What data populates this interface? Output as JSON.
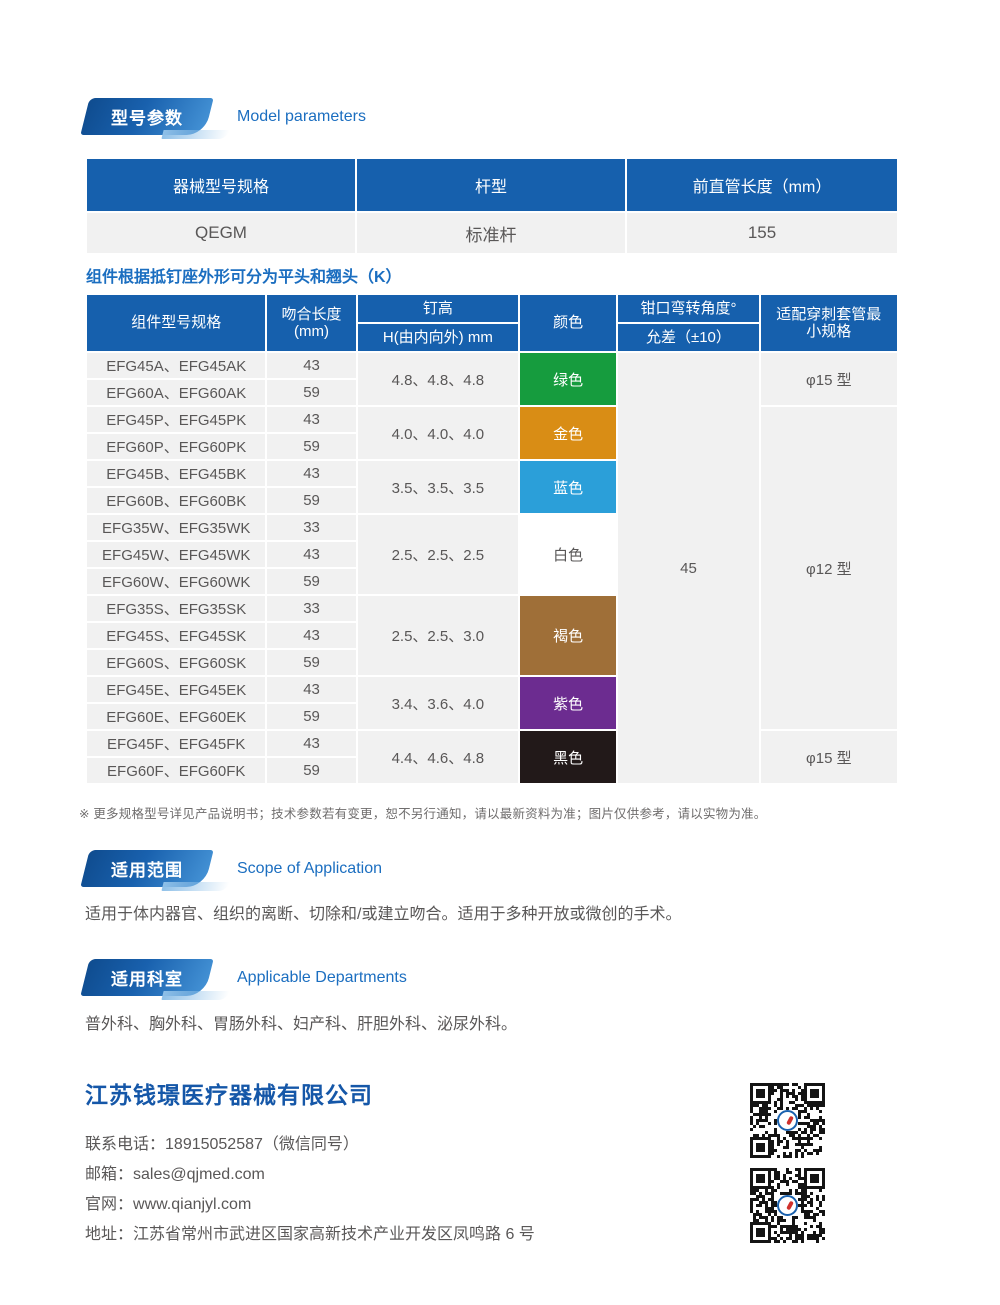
{
  "model_params": {
    "badge": "型号参数",
    "subtitle": "Model parameters",
    "table": {
      "headers": [
        "器械型号规格",
        "杆型",
        "前直管长度（mm）"
      ],
      "row": [
        "QEGM",
        "标准杆",
        "155"
      ]
    }
  },
  "components_note": "组件根据抵钉座外形可分为平头和翘头（K）",
  "components_table": {
    "headers": {
      "model": "组件型号规格",
      "length_line1": "吻合长度",
      "length_line2": "(mm)",
      "staple": "钉高",
      "staple_sub": "H(由内向外) mm",
      "color": "颜色",
      "angle": "钳口弯转角度°",
      "angle_sub": "允差（±10）",
      "trocar": "适配穿刺套管最小规格"
    },
    "angle_value": "45",
    "groups": [
      {
        "staple_heights": "4.8、4.8、4.8",
        "color": {
          "label": "绿色",
          "hex": "#169c3e",
          "text": "#ffffff"
        },
        "models": [
          {
            "name": "EFG45A、EFG45AK",
            "length": "43"
          },
          {
            "name": "EFG60A、EFG60AK",
            "length": "59"
          }
        ]
      },
      {
        "staple_heights": "4.0、4.0、4.0",
        "color": {
          "label": "金色",
          "hex": "#d98d15",
          "text": "#ffffff"
        },
        "models": [
          {
            "name": "EFG45P、EFG45PK",
            "length": "43"
          },
          {
            "name": "EFG60P、EFG60PK",
            "length": "59"
          }
        ]
      },
      {
        "staple_heights": "3.5、3.5、3.5",
        "color": {
          "label": "蓝色",
          "hex": "#2b9fd9",
          "text": "#ffffff"
        },
        "models": [
          {
            "name": "EFG45B、EFG45BK",
            "length": "43"
          },
          {
            "name": "EFG60B、EFG60BK",
            "length": "59"
          }
        ]
      },
      {
        "staple_heights": "2.5、2.5、2.5",
        "color": {
          "label": "白色",
          "hex": "#ffffff",
          "text": "#595757"
        },
        "models": [
          {
            "name": "EFG35W、EFG35WK",
            "length": "33"
          },
          {
            "name": "EFG45W、EFG45WK",
            "length": "43"
          },
          {
            "name": "EFG60W、EFG60WK",
            "length": "59"
          }
        ]
      },
      {
        "staple_heights": "2.5、2.5、3.0",
        "color": {
          "label": "褐色",
          "hex": "#9f6f38",
          "text": "#ffffff"
        },
        "models": [
          {
            "name": "EFG35S、EFG35SK",
            "length": "33"
          },
          {
            "name": "EFG45S、EFG45SK",
            "length": "43"
          },
          {
            "name": "EFG60S、EFG60SK",
            "length": "59"
          }
        ]
      },
      {
        "staple_heights": "3.4、3.6、4.0",
        "color": {
          "label": "紫色",
          "hex": "#6c2c90",
          "text": "#ffffff"
        },
        "models": [
          {
            "name": "EFG45E、EFG45EK",
            "length": "43"
          },
          {
            "name": "EFG60E、EFG60EK",
            "length": "59"
          }
        ]
      },
      {
        "staple_heights": "4.4、4.6、4.8",
        "color": {
          "label": "黑色",
          "hex": "#221919",
          "text": "#ffffff"
        },
        "models": [
          {
            "name": "EFG45F、EFG45FK",
            "length": "43"
          },
          {
            "name": "EFG60F、EFG60FK",
            "length": "59"
          }
        ]
      }
    ],
    "trocar_spans": [
      {
        "label": "φ15 型",
        "row_count": 2
      },
      {
        "label": "φ12 型",
        "row_count": 12
      },
      {
        "label": "φ15 型",
        "row_count": 2
      }
    ]
  },
  "footnote": "※ 更多规格型号详见产品说明书；技术参数若有变更，恕不另行通知，请以最新资料为准；图片仅供参考，请以实物为准。",
  "scope": {
    "badge": "适用范围",
    "subtitle": "Scope of Application",
    "body": "适用于体内器官、组织的离断、切除和/或建立吻合。适用于多种开放或微创的手术。"
  },
  "departments": {
    "badge": "适用科室",
    "subtitle": "Applicable Departments",
    "body": "普外科、胸外科、胃肠外科、妇产科、肝胆外科、泌尿外科。"
  },
  "company": {
    "name": "江苏钱璟医疗器械有限公司",
    "contacts": [
      {
        "label": "联系电话：",
        "value": "18915052587（微信同号）"
      },
      {
        "label": "邮箱：",
        "value": "sales@qjmed.com"
      },
      {
        "label": "官网：",
        "value": "www.qianjyl.com"
      },
      {
        "label": "地址：",
        "value": "江苏省常州市武进区国家高新技术产业开发区凤鸣路 6 号"
      }
    ]
  },
  "colors": {
    "header_blue": "#1660ad",
    "accent_blue": "#1b6ec0",
    "company_blue": "#1557a8"
  }
}
